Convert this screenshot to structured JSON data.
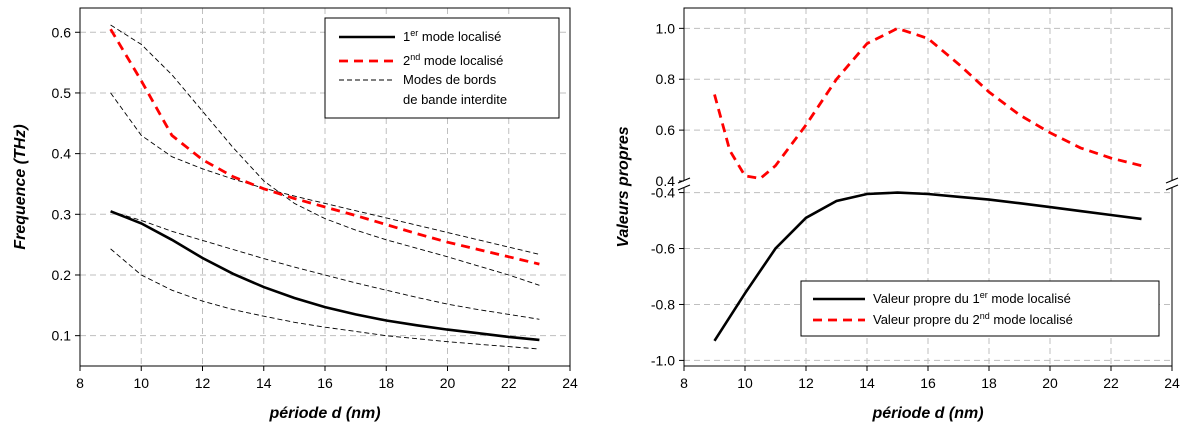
{
  "chart_data": [
    {
      "type": "line",
      "xlabel": "période d (nm)",
      "ylabel": "Frequence (THz)",
      "xlim": [
        8,
        24
      ],
      "ylim": [
        0.05,
        0.64
      ],
      "x_ticks": [
        "8",
        "10",
        "12",
        "14",
        "16",
        "18",
        "20",
        "22",
        "24"
      ],
      "y_ticks": [
        "0.1",
        "0.2",
        "0.3",
        "0.4",
        "0.5",
        "0.6"
      ],
      "grid": true,
      "legend_position": "top-right",
      "legend": [
        {
          "pre": "1",
          "sup": "er",
          "post": " mode localisé",
          "style": "solid-black-thick"
        },
        {
          "pre": "2",
          "sup": "nd",
          "post": " mode localisé",
          "style": "dashed-red-thick"
        },
        {
          "pre": "Modes de bords",
          "sup": "",
          "post": "",
          "line2": "de bande interdite",
          "style": "dashed-black-thin"
        }
      ],
      "series": [
        {
          "style": "solid-black-thick",
          "x": [
            9,
            10,
            11,
            12,
            13,
            14,
            15,
            16,
            17,
            18,
            19,
            20,
            21,
            22,
            23
          ],
          "y": [
            0.305,
            0.285,
            0.258,
            0.228,
            0.202,
            0.18,
            0.162,
            0.147,
            0.135,
            0.125,
            0.117,
            0.11,
            0.104,
            0.098,
            0.093
          ]
        },
        {
          "style": "dashed-red-thick",
          "x": [
            9,
            10,
            11,
            12,
            13,
            14,
            15,
            16,
            17,
            18,
            19,
            20,
            21,
            22,
            23
          ],
          "y": [
            0.605,
            0.52,
            0.43,
            0.39,
            0.362,
            0.342,
            0.326,
            0.312,
            0.298,
            0.283,
            0.268,
            0.254,
            0.242,
            0.23,
            0.218
          ]
        },
        {
          "style": "dashed-black-thin",
          "x": [
            9,
            10,
            11,
            12,
            13,
            14,
            15,
            16,
            17,
            18,
            19,
            20,
            21,
            22,
            23
          ],
          "y": [
            0.612,
            0.58,
            0.53,
            0.47,
            0.41,
            0.355,
            0.318,
            0.293,
            0.274,
            0.258,
            0.244,
            0.23,
            0.215,
            0.2,
            0.183
          ]
        },
        {
          "style": "dashed-black-thin",
          "x": [
            9,
            10,
            11,
            12,
            13,
            14,
            15,
            16,
            17,
            18,
            19,
            20,
            21,
            22,
            23
          ],
          "y": [
            0.5,
            0.43,
            0.395,
            0.375,
            0.358,
            0.343,
            0.33,
            0.318,
            0.306,
            0.294,
            0.282,
            0.27,
            0.258,
            0.246,
            0.234
          ]
        },
        {
          "style": "dashed-black-thin",
          "x": [
            9,
            10,
            11,
            12,
            13,
            14,
            15,
            16,
            17,
            18,
            19,
            20,
            21,
            22,
            23
          ],
          "y": [
            0.305,
            0.29,
            0.272,
            0.257,
            0.242,
            0.227,
            0.213,
            0.2,
            0.187,
            0.175,
            0.163,
            0.152,
            0.143,
            0.135,
            0.127
          ]
        },
        {
          "style": "dashed-black-thin",
          "x": [
            9,
            10,
            11,
            12,
            13,
            14,
            15,
            16,
            17,
            18,
            19,
            20,
            21,
            22,
            23
          ],
          "y": [
            0.243,
            0.2,
            0.175,
            0.157,
            0.143,
            0.132,
            0.122,
            0.114,
            0.107,
            0.1,
            0.095,
            0.09,
            0.086,
            0.082,
            0.078
          ]
        }
      ]
    },
    {
      "type": "line",
      "xlabel": "période d (nm)",
      "ylabel": "Valeurs propres",
      "xlim": [
        8,
        24
      ],
      "broken_y_axis": true,
      "x_ticks": [
        "8",
        "10",
        "12",
        "14",
        "16",
        "18",
        "20",
        "22",
        "24"
      ],
      "upper_panel": {
        "ylim": [
          0.4,
          1.08
        ],
        "y_ticks": [
          "0.4",
          "0.6",
          "0.8",
          "1.0"
        ]
      },
      "lower_panel": {
        "ylim": [
          -1.02,
          -0.38
        ],
        "y_ticks": [
          "-0.4",
          "-0.6",
          "-0.8",
          "-1.0"
        ]
      },
      "grid": true,
      "legend_position": "bottom-right",
      "legend": [
        {
          "pre": "Valeur propre du 1",
          "sup": "er",
          "post": " mode localisé",
          "style": "solid-black-thick"
        },
        {
          "pre": "Valeur propre du 2",
          "sup": "nd",
          "post": " mode localisé",
          "style": "dashed-red-thick"
        }
      ],
      "series": [
        {
          "style": "solid-black-thick",
          "panel": "lower",
          "x": [
            9,
            10,
            11,
            12,
            13,
            14,
            15,
            16,
            17,
            18,
            19,
            20,
            21,
            22,
            23
          ],
          "y": [
            -0.93,
            -0.76,
            -0.6,
            -0.49,
            -0.43,
            -0.405,
            -0.4,
            -0.405,
            -0.415,
            -0.425,
            -0.438,
            -0.452,
            -0.466,
            -0.48,
            -0.494
          ]
        },
        {
          "style": "dashed-red-thick",
          "panel": "upper",
          "x": [
            9,
            9.5,
            10,
            10.5,
            11,
            12,
            13,
            14,
            15,
            16,
            17,
            18,
            19,
            20,
            21,
            22,
            23
          ],
          "y": [
            0.74,
            0.52,
            0.42,
            0.41,
            0.46,
            0.62,
            0.8,
            0.94,
            1.0,
            0.96,
            0.86,
            0.75,
            0.66,
            0.59,
            0.53,
            0.49,
            0.46
          ]
        }
      ]
    }
  ]
}
